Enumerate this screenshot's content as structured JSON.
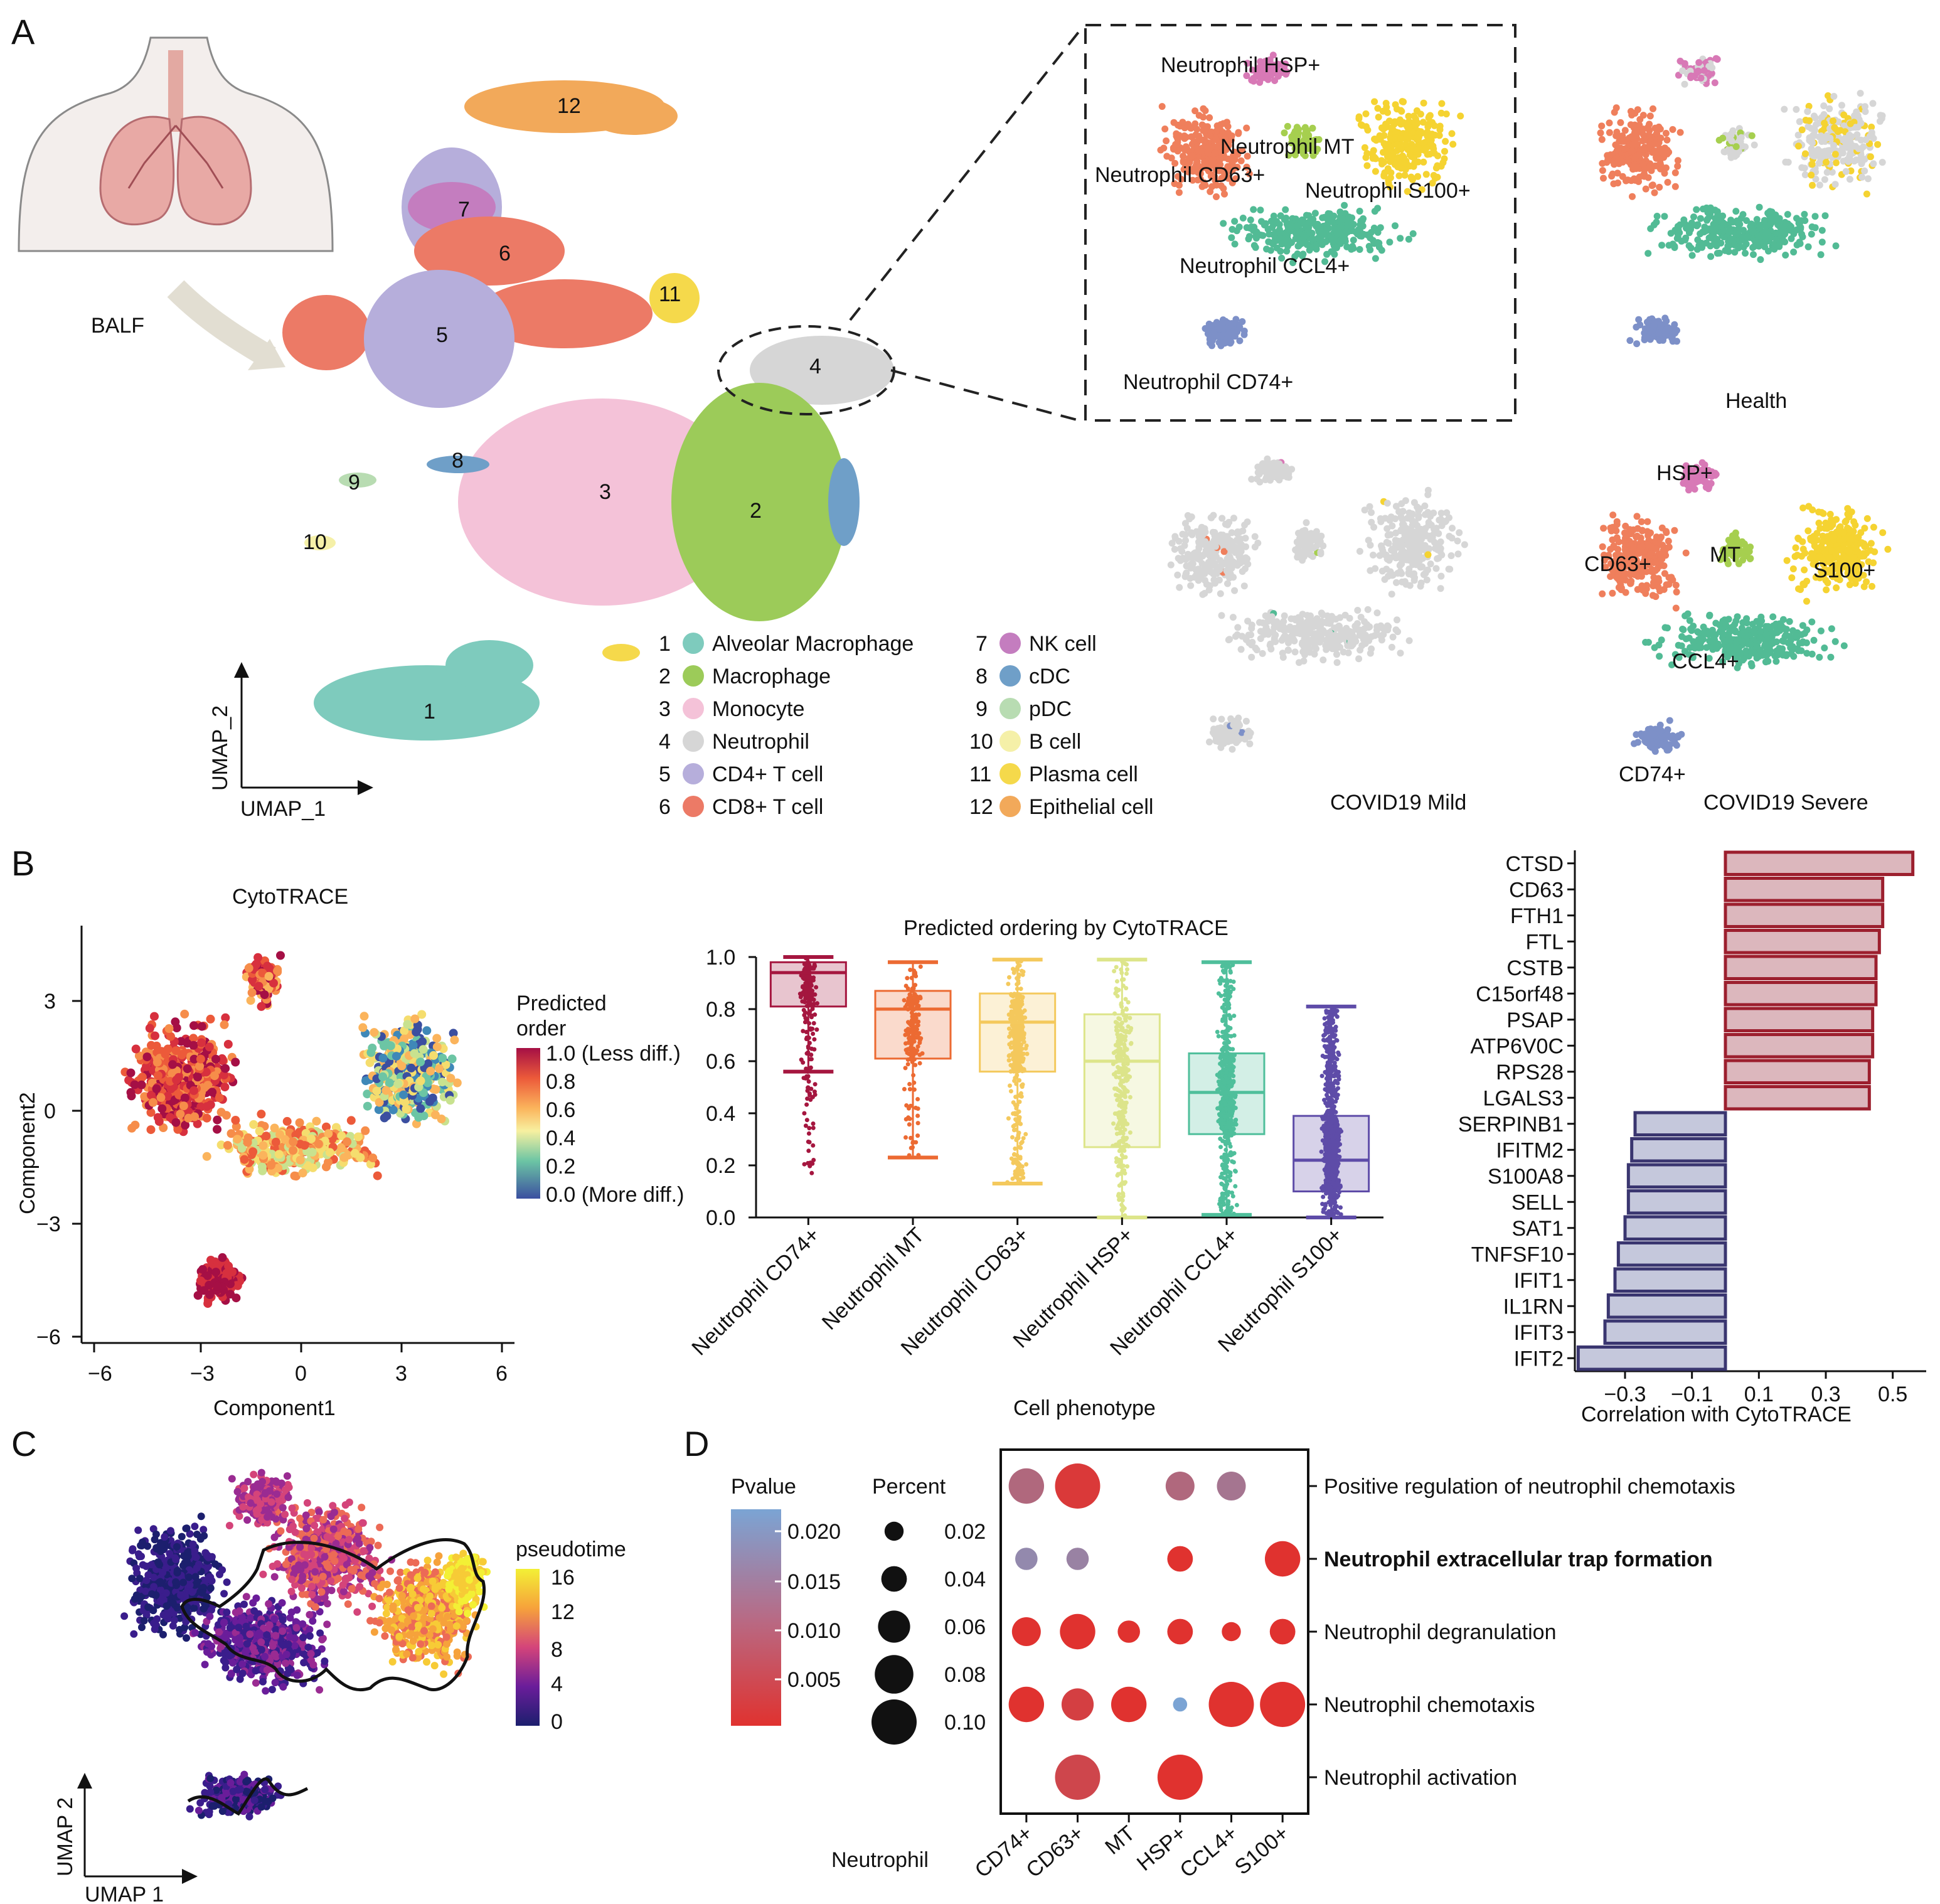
{
  "panels": [
    "A",
    "B",
    "C",
    "D"
  ],
  "panelA": {
    "balf_label": "BALF",
    "umap_x": "UMAP_1",
    "umap_y": "UMAP_2",
    "cluster_numbers": [
      "1",
      "2",
      "3",
      "4",
      "5",
      "6",
      "7",
      "8",
      "9",
      "10",
      "11",
      "12"
    ],
    "legend": [
      {
        "num": "1",
        "name": "Alveolar Macrophage",
        "color": "#7ecbbd"
      },
      {
        "num": "2",
        "name": "Macrophage",
        "color": "#9ccb59"
      },
      {
        "num": "3",
        "name": "Monocyte",
        "color": "#f4c2d8"
      },
      {
        "num": "4",
        "name": "Neutrophil",
        "color": "#d6d6d6"
      },
      {
        "num": "5",
        "name": "CD4+ T cell",
        "color": "#b6aedb"
      },
      {
        "num": "6",
        "name": "CD8+ T cell",
        "color": "#ec7a66"
      },
      {
        "num": "7",
        "name": "NK cell",
        "color": "#c47dbf"
      },
      {
        "num": "8",
        "name": "cDC",
        "color": "#6f9fc8"
      },
      {
        "num": "9",
        "name": "pDC",
        "color": "#b8dcb2"
      },
      {
        "num": "10",
        "name": "B cell",
        "color": "#f5f0a8"
      },
      {
        "num": "11",
        "name": "Plasma cell",
        "color": "#f5d94b"
      },
      {
        "num": "12",
        "name": "Epithelial cell",
        "color": "#f2a95a"
      }
    ],
    "zoom_labels": [
      "Neutrophil HSP+",
      "Neutrophil MT",
      "Neutrophil CD63+",
      "Neutrophil S100+",
      "Neutrophil CCL4+",
      "Neutrophil CD74+"
    ],
    "condition_labels": {
      "health": "Health",
      "mild": "COVID19 Mild",
      "severe": "COVID19 Severe"
    },
    "severe_labels": [
      "HSP+",
      "CD63+",
      "MT",
      "S100+",
      "CCL4+",
      "CD74+"
    ],
    "subtype_colors": {
      "HSP": "#d879b6",
      "MT": "#a6cf4f",
      "CD63": "#ef7f5c",
      "S100": "#f5d331",
      "CCL4": "#52bb95",
      "CD74": "#7d90c8",
      "grey": "#d6d6d6"
    }
  },
  "panelB": {
    "cyto_title": "CytoTRACE",
    "xlabel": "Component1",
    "ylabel": "Component2",
    "xticks": [
      "−6",
      "−3",
      "0",
      "3",
      "6"
    ],
    "yticks": [
      "3",
      "0",
      "−3",
      "−6"
    ],
    "colorbar_title_1": "Predicted",
    "colorbar_title_2": "order",
    "colorbar_ticks": [
      "1.0 (Less diff.)",
      "0.8",
      "0.6",
      "0.4",
      "0.2",
      "0.0 (More diff.)"
    ],
    "box_title": "Predicted ordering by CytoTRACE",
    "box_xlabel": "Cell phenotype",
    "box_yticks": [
      "1.0",
      "0.8",
      "0.6",
      "0.4",
      "0.2",
      "0.0"
    ],
    "corr_xlabel": "Correlation with CytoTRACE",
    "corr_xticks": [
      "−0.3",
      "−0.1",
      "0.1",
      "0.3",
      "0.5"
    ]
  },
  "chart_data": [
    {
      "type": "box",
      "title": "Predicted ordering by CytoTRACE",
      "xlabel": "Cell phenotype",
      "ylim": [
        0,
        1
      ],
      "categories": [
        "Neutrophil CD74+",
        "Neutrophil MT",
        "Neutrophil CD63+",
        "Neutrophil HSP+",
        "Neutrophil CCL4+",
        "Neutrophil S100+"
      ],
      "colors": [
        "#a5163f",
        "#ec6a32",
        "#f4c95d",
        "#dde58a",
        "#4fbf9b",
        "#5e4ca8"
      ],
      "min": [
        0.56,
        0.23,
        0.13,
        0.0,
        0.01,
        0.0
      ],
      "q1": [
        0.81,
        0.61,
        0.56,
        0.27,
        0.32,
        0.1
      ],
      "median": [
        0.94,
        0.8,
        0.75,
        0.6,
        0.48,
        0.22
      ],
      "q3": [
        0.98,
        0.87,
        0.86,
        0.78,
        0.63,
        0.39
      ],
      "max": [
        1.0,
        0.98,
        0.99,
        0.99,
        0.98,
        0.81
      ]
    },
    {
      "type": "bar",
      "orientation": "horizontal",
      "xlabel": "Correlation with CytoTRACE",
      "xlim": [
        -0.45,
        0.6
      ],
      "categories": [
        "CTSD",
        "CD63",
        "FTH1",
        "FTL",
        "CSTB",
        "C15orf48",
        "PSAP",
        "ATP6V0C",
        "RPS28",
        "LGALS3",
        "SERPINB1",
        "IFITM2",
        "S100A8",
        "SELL",
        "SAT1",
        "TNFSF10",
        "IFIT1",
        "IL1RN",
        "IFIT3",
        "IFIT2"
      ],
      "values": [
        0.56,
        0.47,
        0.47,
        0.46,
        0.45,
        0.45,
        0.44,
        0.44,
        0.43,
        0.43,
        -0.27,
        -0.28,
        -0.29,
        -0.29,
        -0.3,
        -0.32,
        -0.33,
        -0.35,
        -0.36,
        -0.44
      ]
    },
    {
      "type": "scatter",
      "title": "dot plot",
      "xlabel": "Neutrophil",
      "categories": [
        "CD74+",
        "CD63+",
        "MT",
        "HSP+",
        "CCL4+",
        "S100+"
      ],
      "terms": [
        "Positive regulation of neutrophil chemotaxis",
        "Neutrophil extracellular trap formation",
        "Neutrophil degranulation",
        "Neutrophil chemotaxis",
        "Neutrophil activation"
      ],
      "points": [
        {
          "term": 0,
          "cat": 0,
          "percent": 0.07,
          "pvalue": 0.012
        },
        {
          "term": 0,
          "cat": 1,
          "percent": 0.1,
          "pvalue": 0.005
        },
        {
          "term": 0,
          "cat": 3,
          "percent": 0.05,
          "pvalue": 0.012
        },
        {
          "term": 0,
          "cat": 4,
          "percent": 0.05,
          "pvalue": 0.014
        },
        {
          "term": 1,
          "cat": 0,
          "percent": 0.03,
          "pvalue": 0.017
        },
        {
          "term": 1,
          "cat": 1,
          "percent": 0.03,
          "pvalue": 0.016
        },
        {
          "term": 1,
          "cat": 3,
          "percent": 0.04,
          "pvalue": 0.004
        },
        {
          "term": 1,
          "cat": 5,
          "percent": 0.07,
          "pvalue": 0.004
        },
        {
          "term": 2,
          "cat": 0,
          "percent": 0.05,
          "pvalue": 0.004
        },
        {
          "term": 2,
          "cat": 1,
          "percent": 0.07,
          "pvalue": 0.004
        },
        {
          "term": 2,
          "cat": 2,
          "percent": 0.03,
          "pvalue": 0.004
        },
        {
          "term": 2,
          "cat": 3,
          "percent": 0.04,
          "pvalue": 0.004
        },
        {
          "term": 2,
          "cat": 4,
          "percent": 0.02,
          "pvalue": 0.004
        },
        {
          "term": 2,
          "cat": 5,
          "percent": 0.04,
          "pvalue": 0.004
        },
        {
          "term": 3,
          "cat": 0,
          "percent": 0.07,
          "pvalue": 0.004
        },
        {
          "term": 3,
          "cat": 1,
          "percent": 0.06,
          "pvalue": 0.006
        },
        {
          "term": 3,
          "cat": 2,
          "percent": 0.07,
          "pvalue": 0.004
        },
        {
          "term": 3,
          "cat": 3,
          "percent": 0.005,
          "pvalue": 0.021
        },
        {
          "term": 3,
          "cat": 4,
          "percent": 0.1,
          "pvalue": 0.004
        },
        {
          "term": 3,
          "cat": 5,
          "percent": 0.1,
          "pvalue": 0.004
        },
        {
          "term": 4,
          "cat": 1,
          "percent": 0.1,
          "pvalue": 0.007
        },
        {
          "term": 4,
          "cat": 3,
          "percent": 0.1,
          "pvalue": 0.004
        }
      ]
    }
  ],
  "panelC": {
    "legend_title": "pseudotime",
    "legend_ticks": [
      "16",
      "12",
      "8",
      "4",
      "0"
    ],
    "umap_x": "UMAP 1",
    "umap_y": "UMAP 2"
  },
  "panelD": {
    "pvalue_title": "Pvalue",
    "pvalue_ticks": [
      "0.020",
      "0.015",
      "0.010",
      "0.005"
    ],
    "percent_title": "Percent",
    "percent_ticks": [
      "0.02",
      "0.04",
      "0.06",
      "0.08",
      "0.10"
    ],
    "xgroup_label": "Neutrophil"
  }
}
